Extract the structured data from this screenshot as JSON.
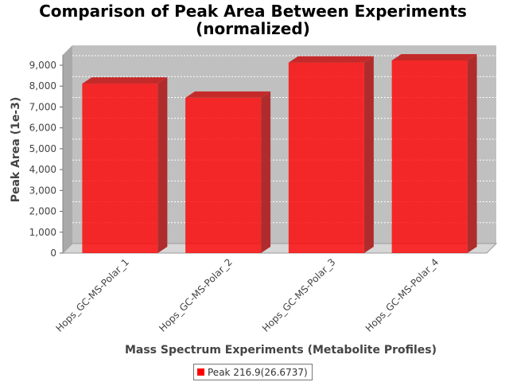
{
  "colors": {
    "bar": "#ff0000",
    "background_plot": "#c0c0c0"
  },
  "chart_data": {
    "type": "bar",
    "title": "Comparison of Peak Area Between Experiments",
    "subtitle": "(normalized)",
    "xlabel": "Mass Spectrum Experiments (Metabolite Profiles)",
    "ylabel": "Peak Area (1e-3)",
    "categories": [
      "Hops_GC-MS-Polar_1",
      "Hops_GC-MS-Polar_2",
      "Hops_GC-MS-Polar_3",
      "Hops_GC-MS-Polar_4"
    ],
    "series": [
      {
        "name": "Peak 216.9(26.6737)",
        "values": [
          8120,
          7440,
          9130,
          9230
        ]
      }
    ],
    "ylim": [
      0,
      9000
    ],
    "yticks": [
      0,
      1000,
      2000,
      3000,
      4000,
      5000,
      6000,
      7000,
      8000,
      9000
    ],
    "ytick_labels": [
      "0",
      "1,000",
      "2,000",
      "3,000",
      "4,000",
      "5,000",
      "6,000",
      "7,000",
      "8,000",
      "9,000"
    ],
    "grid": true,
    "legend_position": "bottom"
  }
}
